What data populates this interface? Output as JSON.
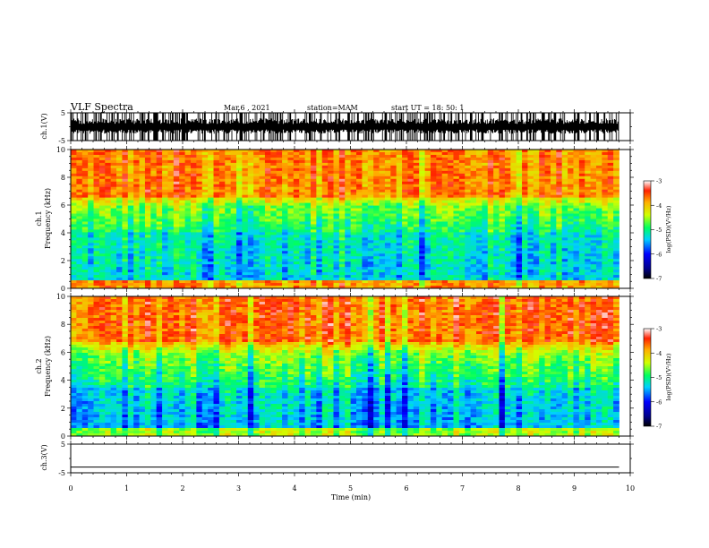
{
  "header": {
    "title": "VLF Spectra",
    "date": "Mar.6 , 2021",
    "station": "station=MAM",
    "start": "start UT = 18: 50: 1"
  },
  "chart_data": [
    {
      "type": "line",
      "panel": "ch1-waveform",
      "ylabel": "ch.1(V)",
      "ylim": [
        -5,
        5
      ],
      "yticks": [
        "5",
        "-5"
      ],
      "xlim": [
        0,
        10
      ],
      "description_values": "dense impulsive waveform spanning approx -5 to 5 V from 0 to 9.8 min"
    },
    {
      "type": "heatmap",
      "panel": "ch1-spectrogram",
      "ylabel": [
        "ch.1",
        "Frequency (kHz)"
      ],
      "ylim": [
        0,
        10
      ],
      "yticks": [
        "0",
        "2",
        "4",
        "6",
        "8",
        "10"
      ],
      "xlim": [
        0,
        10
      ],
      "data_end_min": 9.8,
      "colorbar": {
        "label": "log(PSD)(V²/Hz)",
        "range": [
          -7,
          -3
        ],
        "ticks": [
          "-3",
          "-4",
          "-5",
          "-6",
          "-7"
        ]
      }
    },
    {
      "type": "heatmap",
      "panel": "ch2-spectrogram",
      "ylabel": [
        "ch.2",
        "Frequency (kHz)"
      ],
      "ylim": [
        0,
        10
      ],
      "yticks": [
        "0",
        "2",
        "4",
        "6",
        "8",
        "10"
      ],
      "xlim": [
        0,
        10
      ],
      "data_end_min": 9.8,
      "colorbar": {
        "label": "log(PSD)(V²/Hz)",
        "range": [
          -7,
          -3
        ],
        "ticks": [
          "-3",
          "-4",
          "-5",
          "-6",
          "-7"
        ]
      }
    },
    {
      "type": "line",
      "panel": "ch3-waveform",
      "ylabel": "ch.3(V)",
      "ylim": [
        -5,
        5
      ],
      "yticks": [
        "5",
        "-5"
      ],
      "xlim": [
        0,
        10
      ],
      "x": [
        0,
        9.8
      ],
      "y": [
        -3,
        -3
      ]
    }
  ],
  "xaxis": {
    "label": "Time (min)",
    "ticks": [
      "0",
      "1",
      "2",
      "3",
      "4",
      "5",
      "6",
      "7",
      "8",
      "9",
      "10"
    ]
  }
}
